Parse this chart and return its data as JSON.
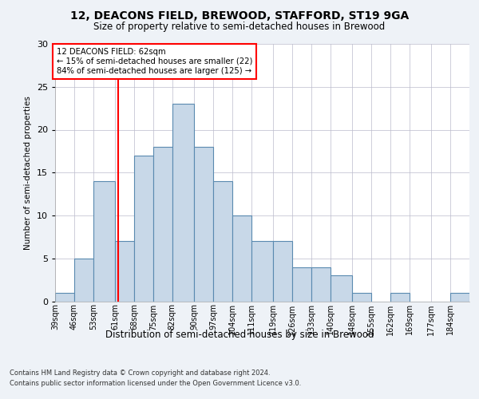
{
  "title1": "12, DEACONS FIELD, BREWOOD, STAFFORD, ST19 9GA",
  "title2": "Size of property relative to semi-detached houses in Brewood",
  "xlabel": "Distribution of semi-detached houses by size in Brewood",
  "ylabel": "Number of semi-detached properties",
  "bins": [
    39,
    46,
    53,
    61,
    68,
    75,
    82,
    90,
    97,
    104,
    111,
    119,
    126,
    133,
    140,
    148,
    155,
    162,
    169,
    177,
    184,
    191
  ],
  "bin_labels": [
    "39sqm",
    "46sqm",
    "53sqm",
    "61sqm",
    "68sqm",
    "75sqm",
    "82sqm",
    "90sqm",
    "97sqm",
    "104sqm",
    "111sqm",
    "119sqm",
    "126sqm",
    "133sqm",
    "140sqm",
    "148sqm",
    "155sqm",
    "162sqm",
    "169sqm",
    "177sqm",
    "184sqm"
  ],
  "counts": [
    1,
    5,
    14,
    7,
    17,
    18,
    23,
    18,
    14,
    10,
    7,
    7,
    4,
    4,
    3,
    1,
    0,
    1,
    0,
    0,
    1
  ],
  "bar_color": "#c8d8e8",
  "bar_edgecolor": "#5a8ab0",
  "redline_x": 62,
  "annotation_title": "12 DEACONS FIELD: 62sqm",
  "annotation_line1": "← 15% of semi-detached houses are smaller (22)",
  "annotation_line2": "84% of semi-detached houses are larger (125) →",
  "annotation_box_color": "white",
  "annotation_box_edgecolor": "red",
  "redline_color": "red",
  "ylim": [
    0,
    30
  ],
  "yticks": [
    0,
    5,
    10,
    15,
    20,
    25,
    30
  ],
  "footer1": "Contains HM Land Registry data © Crown copyright and database right 2024.",
  "footer2": "Contains public sector information licensed under the Open Government Licence v3.0.",
  "background_color": "#eef2f7",
  "plot_background_color": "#ffffff",
  "grid_color": "#bbbbcc"
}
